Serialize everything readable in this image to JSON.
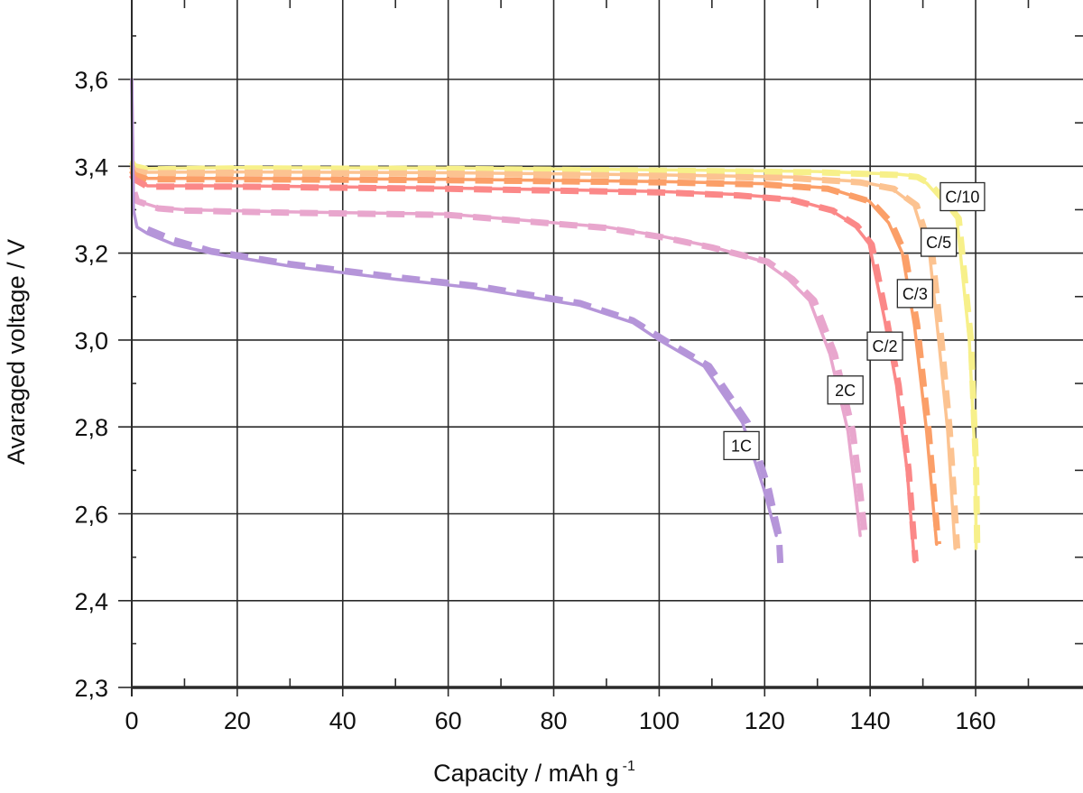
{
  "chart_data": {
    "type": "line",
    "title": "",
    "xlabel": "Capacity / mAh g",
    "xlabel_superscript": "-1",
    "ylabel": "Avaraged voltage / V",
    "xlim": [
      0,
      180
    ],
    "ylim": [
      2.3,
      3.78
    ],
    "grid": true,
    "x_ticks": [
      {
        "value": 0,
        "label": "0"
      },
      {
        "value": 20,
        "label": "20"
      },
      {
        "value": 40,
        "label": "40"
      },
      {
        "value": 60,
        "label": "60"
      },
      {
        "value": 80,
        "label": "80"
      },
      {
        "value": 100,
        "label": "100"
      },
      {
        "value": 120,
        "label": "120"
      },
      {
        "value": 140,
        "label": "140"
      },
      {
        "value": 160,
        "label": "160"
      }
    ],
    "y_ticks": [
      {
        "value": 2.3,
        "label": "2,3"
      },
      {
        "value": 2.4,
        "label": "2,4"
      },
      {
        "value": 2.6,
        "label": "2,6"
      },
      {
        "value": 2.8,
        "label": "2,8"
      },
      {
        "value": 3.0,
        "label": "3,0"
      },
      {
        "value": 3.2,
        "label": "3,2"
      },
      {
        "value": 3.4,
        "label": "3,4"
      },
      {
        "value": 3.6,
        "label": "3,6"
      }
    ],
    "series": [
      {
        "label": "C/10",
        "color": "#f7f08a",
        "style": "solid",
        "x": [
          0,
          0.5,
          3,
          20,
          60,
          100,
          130,
          145,
          148.4,
          150.7,
          153,
          156.4,
          158.8,
          160,
          160.1
        ],
        "y": [
          3.41,
          3.4,
          3.395,
          3.397,
          3.396,
          3.392,
          3.388,
          3.382,
          3.378,
          3.361,
          3.33,
          3.284,
          3.0,
          2.7,
          2.52
        ]
      },
      {
        "label": "C/10",
        "color": "#f7f08a",
        "style": "dashed",
        "x": [
          0,
          0.5,
          3,
          20,
          60,
          100,
          130,
          145,
          149,
          151.3,
          153.6,
          156.8,
          159.1,
          160.1,
          160.3
        ],
        "y": [
          3.41,
          3.4,
          3.393,
          3.395,
          3.394,
          3.39,
          3.386,
          3.38,
          3.375,
          3.36,
          3.33,
          3.28,
          3.0,
          2.7,
          2.52
        ]
      },
      {
        "label": "C/5",
        "color": "#fcc391",
        "style": "solid",
        "x": [
          0,
          0.5,
          3,
          20,
          60,
          100,
          125,
          138,
          144,
          148.3,
          151.3,
          153,
          154.7,
          156.1
        ],
        "y": [
          3.4,
          3.39,
          3.386,
          3.387,
          3.385,
          3.38,
          3.375,
          3.365,
          3.35,
          3.311,
          3.195,
          3.0,
          2.79,
          2.52
        ]
      },
      {
        "label": "C/5",
        "color": "#fcc391",
        "style": "dashed",
        "x": [
          0,
          0.5,
          3,
          20,
          60,
          100,
          125,
          138,
          144.5,
          148.8,
          151.8,
          153.5,
          155.1,
          156.5
        ],
        "y": [
          3.4,
          3.39,
          3.384,
          3.385,
          3.383,
          3.378,
          3.373,
          3.363,
          3.348,
          3.31,
          3.195,
          3.0,
          2.79,
          2.52
        ]
      },
      {
        "label": "C/3",
        "color": "#fb9f68",
        "style": "solid",
        "x": [
          0,
          0.5,
          3,
          20,
          60,
          100,
          120,
          132,
          139.8,
          143.5,
          146.1,
          148.4,
          150.7,
          152.6
        ],
        "y": [
          3.39,
          3.38,
          3.372,
          3.372,
          3.37,
          3.365,
          3.36,
          3.35,
          3.32,
          3.27,
          3.2,
          3.035,
          2.79,
          2.53
        ]
      },
      {
        "label": "C/3",
        "color": "#fb9f68",
        "style": "dashed",
        "x": [
          0,
          0.5,
          3,
          20,
          60,
          100,
          120,
          132,
          140.3,
          144,
          146.6,
          148.9,
          151.1,
          152.9
        ],
        "y": [
          3.39,
          3.38,
          3.37,
          3.37,
          3.368,
          3.363,
          3.358,
          3.348,
          3.318,
          3.27,
          3.2,
          3.035,
          2.79,
          2.53
        ]
      },
      {
        "label": "C/2",
        "color": "#fb8888",
        "style": "solid",
        "x": [
          0,
          0.5,
          3,
          20,
          60,
          100,
          115,
          125,
          132.4,
          137,
          139.8,
          142.7,
          145,
          147,
          148.4
        ],
        "y": [
          3.38,
          3.37,
          3.355,
          3.355,
          3.35,
          3.342,
          3.335,
          3.325,
          3.3,
          3.265,
          3.222,
          3.05,
          2.896,
          2.7,
          2.49
        ]
      },
      {
        "label": "C/2",
        "color": "#fb8888",
        "style": "dashed",
        "x": [
          0,
          0.5,
          3,
          20,
          60,
          100,
          115,
          125,
          132.9,
          137.5,
          140.3,
          143.1,
          145.4,
          147.3,
          148.6
        ],
        "y": [
          3.38,
          3.37,
          3.353,
          3.353,
          3.348,
          3.34,
          3.333,
          3.323,
          3.298,
          3.263,
          3.22,
          3.05,
          2.896,
          2.7,
          2.49
        ]
      },
      {
        "label": "2C",
        "color": "#e8a6cd",
        "style": "solid",
        "x": [
          0,
          0.3,
          1,
          5,
          10,
          30,
          60,
          90,
          100,
          110,
          119.9,
          124.5,
          128.5,
          132.4,
          135.8,
          137.2,
          138.1
        ],
        "y": [
          3.6,
          3.34,
          3.32,
          3.305,
          3.3,
          3.295,
          3.29,
          3.26,
          3.24,
          3.215,
          3.18,
          3.14,
          3.091,
          2.967,
          2.79,
          2.65,
          2.55
        ]
      },
      {
        "label": "2C",
        "color": "#e8a6cd",
        "style": "dashed",
        "x": [
          0.5,
          1,
          5,
          10,
          30,
          60,
          90,
          100,
          110,
          120.6,
          125.3,
          129.4,
          133.3,
          136.7,
          138.1,
          139
        ],
        "y": [
          3.34,
          3.32,
          3.303,
          3.298,
          3.293,
          3.288,
          3.258,
          3.238,
          3.213,
          3.18,
          3.14,
          3.091,
          2.967,
          2.79,
          2.65,
          2.55
        ]
      },
      {
        "label": "1C",
        "color": "#b595d9",
        "style": "solid",
        "x": [
          0,
          0.3,
          1,
          3,
          8,
          15,
          30,
          50,
          65,
          85,
          95,
          100,
          108.5,
          115.8,
          119.9,
          122.2
        ],
        "y": [
          3.6,
          3.3,
          3.26,
          3.245,
          3.22,
          3.2,
          3.17,
          3.14,
          3.12,
          3.08,
          3.04,
          3.0,
          2.94,
          2.81,
          2.655,
          2.55
        ]
      },
      {
        "label": "1C",
        "color": "#b595d9",
        "style": "dashed",
        "x": [
          3,
          8,
          15,
          30,
          50,
          65,
          85,
          95,
          101,
          109.5,
          116.8,
          120.8,
          122.7,
          123
        ],
        "y": [
          3.255,
          3.23,
          3.205,
          3.175,
          3.145,
          3.125,
          3.085,
          3.045,
          3.0,
          2.94,
          2.81,
          2.655,
          2.55,
          2.48
        ]
      }
    ],
    "annotations": [
      {
        "text": "C/10",
        "x": 157.5,
        "y": 3.33
      },
      {
        "text": "C/5",
        "x": 153,
        "y": 3.225
      },
      {
        "text": "C/3",
        "x": 148.5,
        "y": 3.107
      },
      {
        "text": "C/2",
        "x": 142.8,
        "y": 2.986
      },
      {
        "text": "2C",
        "x": 135.3,
        "y": 2.885
      },
      {
        "text": "1C",
        "x": 115.6,
        "y": 2.757
      }
    ]
  }
}
